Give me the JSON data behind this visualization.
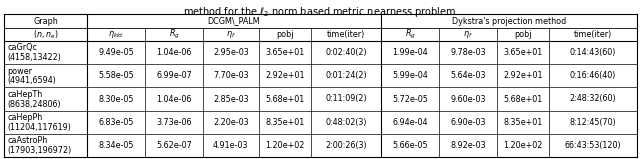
{
  "title": "method for the $\\ell_2$ norm based metric nearness problem",
  "sub_headers": [
    "$(n,n_e)$",
    "$\\eta_{kkt}$",
    "$R_g$",
    "$\\eta_f$",
    "pobj",
    "time(iter)",
    "$R_g$",
    "$\\eta_f$",
    "pobj",
    "time(iter)"
  ],
  "rows": [
    [
      "caGrQc",
      "(4158,13422)",
      "9.49e-05",
      "1.04e-06",
      "2.95e-03",
      "3.65e+01",
      "0:02:40(2)",
      "1.99e-04",
      "9.78e-03",
      "3.65e+01",
      "0:14:43(60)"
    ],
    [
      "power",
      "(4941,6594)",
      "5.58e-05",
      "6.99e-07",
      "7.70e-03",
      "2.92e+01",
      "0:01:24(2)",
      "5.99e-04",
      "5.64e-03",
      "2.92e+01",
      "0:16:46(40)"
    ],
    [
      "caHepTh",
      "(8638,24806)",
      "8.30e-05",
      "1.04e-06",
      "2.85e-03",
      "5.68e+01",
      "0:11:09(2)",
      "5.72e-05",
      "9.60e-03",
      "5.68e+01",
      "2:48:32(60)"
    ],
    [
      "caHepPh",
      "(11204,117619)",
      "6.83e-05",
      "3.73e-06",
      "2.20e-03",
      "8.35e+01",
      "0:48:02(3)",
      "6.94e-04",
      "6.90e-03",
      "8.35e+01",
      "8:12:45(70)"
    ],
    [
      "caAstroPh",
      "(17903,196972)",
      "8.34e-05",
      "5.62e-07",
      "4.91e-03",
      "1.20e+02",
      "2:00:26(3)",
      "5.66e-05",
      "8.92e-03",
      "1.20e+02",
      "66:43:53(120)"
    ]
  ],
  "bg_color": "#ffffff",
  "line_color": "#000000",
  "font_size": 5.8,
  "title_font_size": 7.0
}
